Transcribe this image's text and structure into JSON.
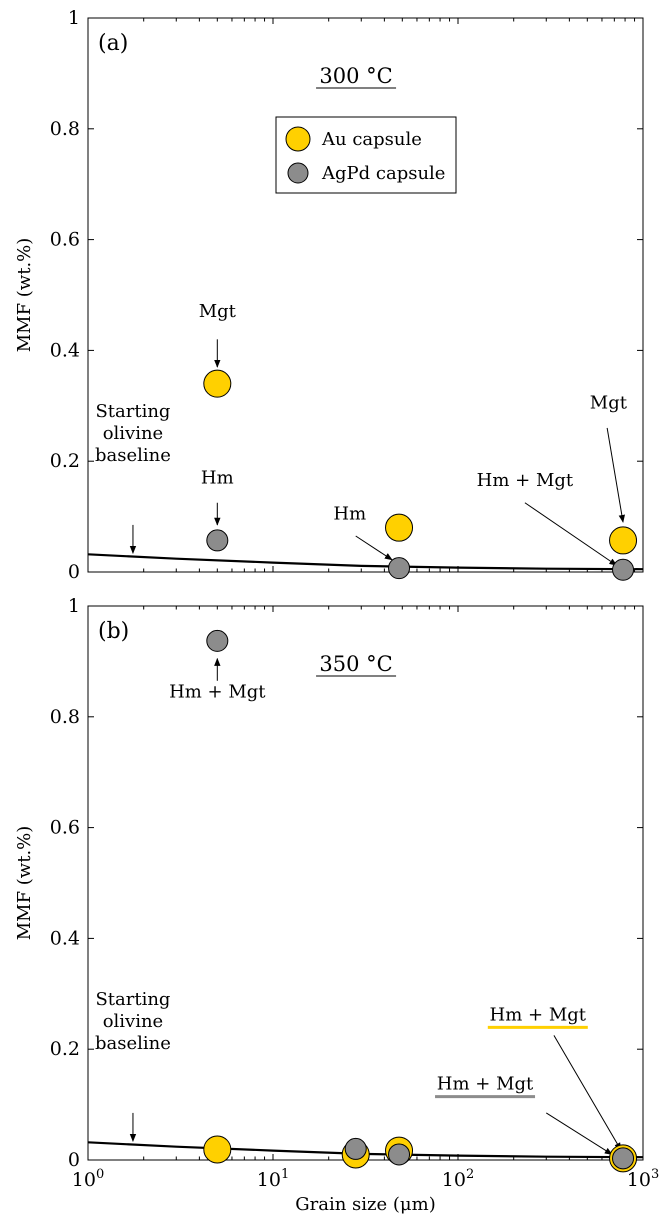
{
  "colors": {
    "au": "#FFD000",
    "agpd": "#8C8C8C",
    "line": "#000000",
    "axis": "#000000"
  },
  "x_axis": {
    "label": "Grain size (μm)",
    "scale": "log",
    "range": [
      1,
      1000
    ],
    "ticks": [
      {
        "value": 1,
        "base": "10",
        "exp": "0"
      },
      {
        "value": 10,
        "base": "10",
        "exp": "1"
      },
      {
        "value": 100,
        "base": "10",
        "exp": "2"
      },
      {
        "value": 1000,
        "base": "10",
        "exp": "3"
      }
    ]
  },
  "legend": {
    "au": "Au capsule",
    "agpd": "AgPd capsule"
  },
  "chart_data": [
    {
      "type": "scatter",
      "panel_label": "(a)",
      "temperature": "300 °C",
      "ylabel": "MMF (wt.%)",
      "ylim": [
        0,
        1
      ],
      "y_ticks": [
        "0",
        "0.2",
        "0.4",
        "0.6",
        "0.8",
        "1"
      ],
      "y_tick_values": [
        0,
        0.2,
        0.4,
        0.6,
        0.8,
        1
      ],
      "series": [
        {
          "name": "Au capsule",
          "x": [
            5,
            48,
            780
          ],
          "y": [
            0.34,
            0.08,
            0.057
          ]
        },
        {
          "name": "AgPd capsule",
          "x": [
            5,
            48,
            780
          ],
          "y": [
            0.057,
            0.007,
            0.004
          ]
        }
      ],
      "baseline": {
        "x": [
          1,
          3,
          10,
          30,
          100,
          300,
          1000
        ],
        "y": [
          0.032,
          0.024,
          0.017,
          0.011,
          0.008,
          0.006,
          0.005
        ]
      },
      "annotations": [
        {
          "lines": [
            "Starting",
            "olivine",
            "baseline"
          ],
          "tx": 1.75,
          "ty": 0.2,
          "ax": 1.75,
          "ay": 0.034,
          "bx": 1.75,
          "by": 0.085
        },
        {
          "lines": [
            "Mgt"
          ],
          "tx": 5,
          "ty": 0.46,
          "ax": 5,
          "ay": 0.37,
          "bx": 5,
          "by": 0.42
        },
        {
          "lines": [
            "Hm"
          ],
          "tx": 5,
          "ty": 0.16,
          "ax": 5,
          "ay": 0.085,
          "bx": 5,
          "by": 0.125
        },
        {
          "lines": [
            "Hm"
          ],
          "tx": 26,
          "ty": 0.095,
          "ax": 44,
          "ay": 0.022,
          "bx": 28,
          "by": 0.065
        },
        {
          "lines": [
            "Hm + Mgt"
          ],
          "tx": 230,
          "ty": 0.155,
          "ax": 720,
          "ay": 0.012,
          "bx": 230,
          "by": 0.125
        },
        {
          "lines": [
            "Mgt"
          ],
          "tx": 650,
          "ty": 0.295,
          "ax": 780,
          "ay": 0.09,
          "bx": 640,
          "by": 0.26
        }
      ]
    },
    {
      "type": "scatter",
      "panel_label": "(b)",
      "temperature": "350 °C",
      "ylabel": "MMF (wt.%)",
      "xlabel": "Grain size (μm)",
      "ylim": [
        0,
        1
      ],
      "y_ticks": [
        "0",
        "0.2",
        "0.4",
        "0.6",
        "0.8",
        "1"
      ],
      "y_tick_values": [
        0,
        0.2,
        0.4,
        0.6,
        0.8,
        1
      ],
      "series": [
        {
          "name": "Au capsule",
          "x": [
            5,
            28,
            48,
            780
          ],
          "y": [
            0.019,
            0.01,
            0.017,
            0.003
          ]
        },
        {
          "name": "AgPd capsule",
          "x": [
            5,
            28,
            48,
            780
          ],
          "y": [
            0.937,
            0.02,
            0.01,
            0.003
          ]
        }
      ],
      "baseline": {
        "x": [
          1,
          3,
          10,
          30,
          100,
          300,
          1000
        ],
        "y": [
          0.032,
          0.024,
          0.017,
          0.011,
          0.008,
          0.006,
          0.005
        ]
      },
      "annotations": [
        {
          "lines": [
            "Hm + Mgt"
          ],
          "tx": 5,
          "ty": 0.835,
          "ax": 5,
          "ay": 0.905,
          "bx": 5,
          "by": 0.865
        },
        {
          "lines": [
            "Starting",
            "olivine",
            "baseline"
          ],
          "tx": 1.75,
          "ty": 0.2,
          "ax": 1.75,
          "ay": 0.034,
          "bx": 1.75,
          "by": 0.085
        },
        {
          "lines": [
            "Hm + Mgt"
          ],
          "tx": 270,
          "ty": 0.252,
          "ax": 760,
          "ay": 0.018,
          "bx": 330,
          "by": 0.225,
          "underline": "au"
        },
        {
          "lines": [
            "Hm + Mgt"
          ],
          "tx": 140,
          "ty": 0.127,
          "ax": 680,
          "ay": 0.01,
          "bx": 300,
          "by": 0.085,
          "underline": "agpd"
        }
      ]
    }
  ]
}
